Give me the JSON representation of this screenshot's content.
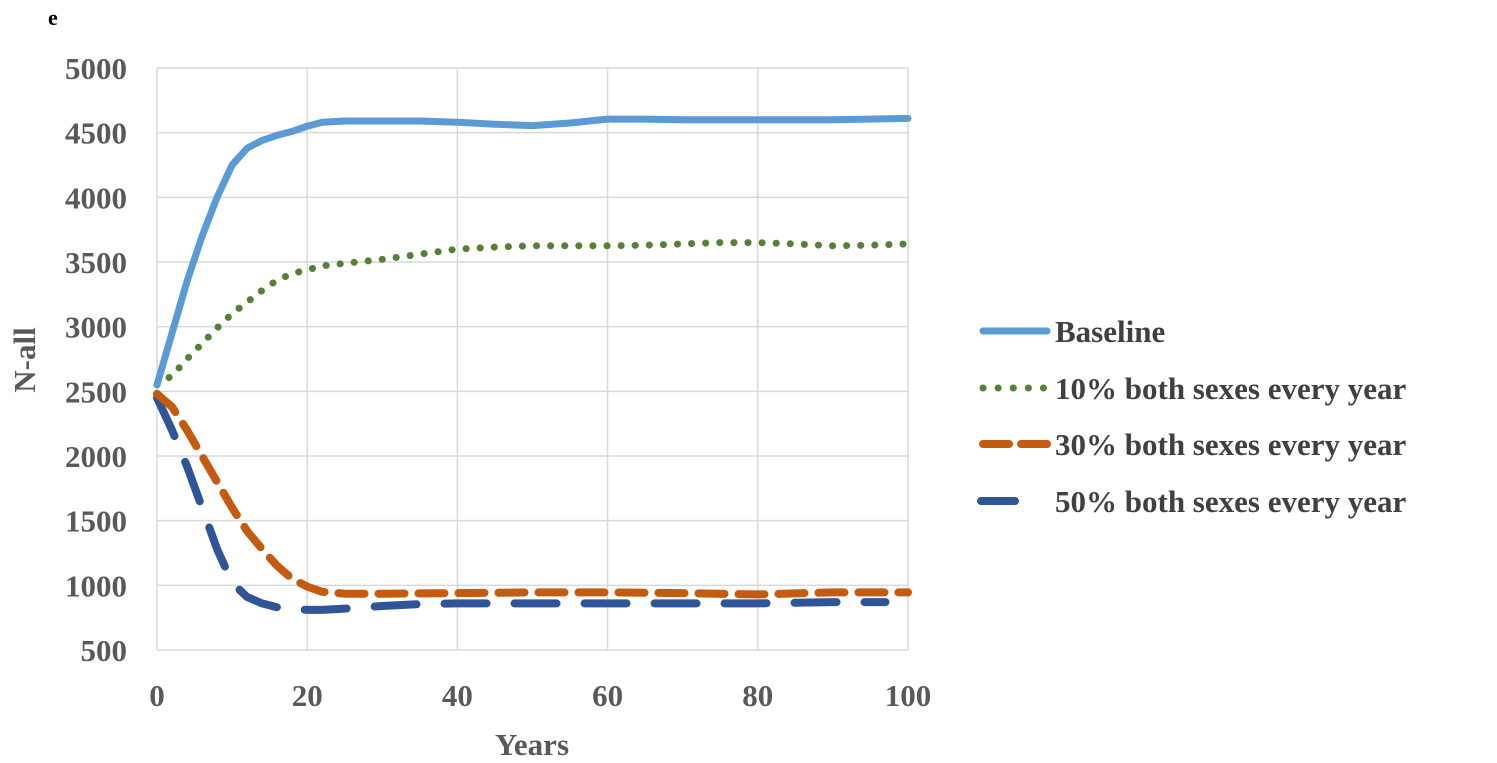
{
  "panel_label": "e",
  "chart_data": {
    "type": "line",
    "title": "",
    "xlabel": "Years",
    "ylabel": "N-all",
    "xlim": [
      0,
      100
    ],
    "ylim": [
      500,
      5000
    ],
    "xticks": [
      0,
      20,
      40,
      60,
      80,
      100
    ],
    "yticks": [
      500,
      1000,
      1500,
      2000,
      2500,
      3000,
      3500,
      4000,
      4500,
      5000
    ],
    "grid": true,
    "legend_position": "right",
    "series": [
      {
        "name": "Baseline",
        "style": "solid",
        "color": "#5b9bd5",
        "points": [
          [
            0,
            2550
          ],
          [
            2,
            2950
          ],
          [
            4,
            3350
          ],
          [
            6,
            3700
          ],
          [
            8,
            4000
          ],
          [
            10,
            4250
          ],
          [
            12,
            4380
          ],
          [
            14,
            4440
          ],
          [
            16,
            4480
          ],
          [
            18,
            4510
          ],
          [
            20,
            4550
          ],
          [
            22,
            4580
          ],
          [
            25,
            4590
          ],
          [
            30,
            4590
          ],
          [
            35,
            4590
          ],
          [
            40,
            4580
          ],
          [
            45,
            4565
          ],
          [
            50,
            4555
          ],
          [
            55,
            4575
          ],
          [
            60,
            4605
          ],
          [
            65,
            4605
          ],
          [
            70,
            4600
          ],
          [
            80,
            4600
          ],
          [
            90,
            4600
          ],
          [
            100,
            4610
          ]
        ]
      },
      {
        "name": "10% both sexes every year",
        "style": "dotted",
        "color": "#548235",
        "points": [
          [
            0,
            2550
          ],
          [
            2,
            2620
          ],
          [
            4,
            2750
          ],
          [
            6,
            2870
          ],
          [
            8,
            2990
          ],
          [
            10,
            3100
          ],
          [
            12,
            3190
          ],
          [
            14,
            3280
          ],
          [
            16,
            3360
          ],
          [
            18,
            3410
          ],
          [
            20,
            3440
          ],
          [
            22,
            3470
          ],
          [
            25,
            3490
          ],
          [
            30,
            3520
          ],
          [
            35,
            3560
          ],
          [
            40,
            3600
          ],
          [
            45,
            3615
          ],
          [
            50,
            3625
          ],
          [
            55,
            3625
          ],
          [
            60,
            3625
          ],
          [
            65,
            3630
          ],
          [
            70,
            3640
          ],
          [
            75,
            3650
          ],
          [
            80,
            3650
          ],
          [
            85,
            3640
          ],
          [
            90,
            3625
          ],
          [
            95,
            3630
          ],
          [
            100,
            3640
          ]
        ]
      },
      {
        "name": "30% both sexes every year",
        "style": "dashed",
        "color": "#c55a11",
        "points": [
          [
            0,
            2480
          ],
          [
            2,
            2380
          ],
          [
            4,
            2200
          ],
          [
            6,
            2000
          ],
          [
            8,
            1800
          ],
          [
            10,
            1600
          ],
          [
            12,
            1420
          ],
          [
            14,
            1280
          ],
          [
            16,
            1150
          ],
          [
            18,
            1050
          ],
          [
            20,
            990
          ],
          [
            22,
            950
          ],
          [
            25,
            935
          ],
          [
            30,
            935
          ],
          [
            40,
            940
          ],
          [
            50,
            945
          ],
          [
            60,
            945
          ],
          [
            70,
            940
          ],
          [
            80,
            930
          ],
          [
            90,
            945
          ],
          [
            100,
            945
          ]
        ]
      },
      {
        "name": "50% both sexes every year",
        "style": "long-dash",
        "color": "#2f5597",
        "points": [
          [
            0,
            2450
          ],
          [
            2,
            2200
          ],
          [
            4,
            1920
          ],
          [
            6,
            1600
          ],
          [
            8,
            1280
          ],
          [
            10,
            1020
          ],
          [
            12,
            910
          ],
          [
            14,
            860
          ],
          [
            16,
            830
          ],
          [
            18,
            815
          ],
          [
            20,
            810
          ],
          [
            22,
            810
          ],
          [
            25,
            820
          ],
          [
            30,
            840
          ],
          [
            35,
            855
          ],
          [
            40,
            860
          ],
          [
            50,
            860
          ],
          [
            60,
            860
          ],
          [
            70,
            860
          ],
          [
            80,
            860
          ],
          [
            90,
            870
          ],
          [
            97,
            870
          ]
        ]
      }
    ]
  }
}
